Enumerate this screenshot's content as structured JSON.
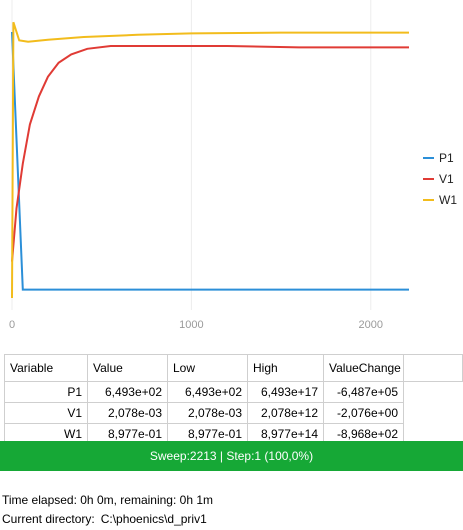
{
  "chart_data": {
    "type": "line",
    "xlim": [
      0,
      2213
    ],
    "ylim": [
      0,
      1
    ],
    "x_ticks": [
      "0",
      "1000",
      "2000"
    ],
    "legend_position": "right",
    "grid": "vertical",
    "series": [
      {
        "name": "P1",
        "color": "#2b8fd8",
        "points": [
          [
            0,
            0.95
          ],
          [
            60,
            0.03
          ],
          [
            100,
            0.03
          ],
          [
            400,
            0.03
          ],
          [
            1000,
            0.03
          ],
          [
            2213,
            0.03
          ]
        ]
      },
      {
        "name": "V1",
        "color": "#e03b35",
        "points": [
          [
            0,
            0.13
          ],
          [
            25,
            0.32
          ],
          [
            60,
            0.48
          ],
          [
            100,
            0.62
          ],
          [
            150,
            0.72
          ],
          [
            200,
            0.79
          ],
          [
            260,
            0.84
          ],
          [
            330,
            0.87
          ],
          [
            420,
            0.89
          ],
          [
            550,
            0.9
          ],
          [
            800,
            0.9
          ],
          [
            1200,
            0.9
          ],
          [
            1600,
            0.895
          ],
          [
            2213,
            0.895
          ]
        ]
      },
      {
        "name": "W1",
        "color": "#f2bc1c",
        "points": [
          [
            0,
            0.0
          ],
          [
            8,
            0.985
          ],
          [
            40,
            0.92
          ],
          [
            90,
            0.915
          ],
          [
            200,
            0.922
          ],
          [
            400,
            0.932
          ],
          [
            700,
            0.94
          ],
          [
            1000,
            0.945
          ],
          [
            1500,
            0.948
          ],
          [
            2213,
            0.948
          ]
        ]
      }
    ]
  },
  "table": {
    "headers": [
      "Variable",
      "Value",
      "Low",
      "High",
      "ValueChange"
    ],
    "rows": [
      [
        "P1",
        "6,493e+02",
        "6,493e+02",
        "6,493e+17",
        "-6,487e+05"
      ],
      [
        "V1",
        "2,078e-03",
        "2,078e-03",
        "2,078e+12",
        "-2,076e+00"
      ],
      [
        "W1",
        "8,977e-01",
        "8,977e-01",
        "8,977e+14",
        "-8,968e+02"
      ]
    ]
  },
  "status": {
    "text": "Sweep:2213 | Step:1  (100,0%)",
    "color": "#16a836"
  },
  "info": {
    "time": "Time elapsed: 0h 0m, remaining: 0h 1m",
    "dir_label": "Current directory:",
    "dir_value": "C:\\phoenics\\d_priv1"
  }
}
